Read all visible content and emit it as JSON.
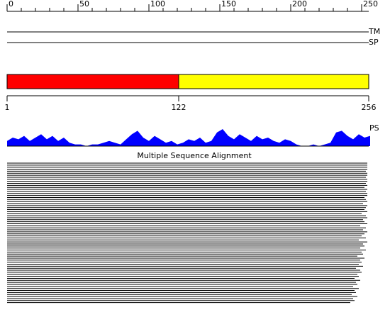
{
  "ruler": {
    "xlim": [
      0,
      255
    ],
    "ticks": [
      0,
      50,
      100,
      150,
      200,
      250
    ],
    "minor_ticks": [
      10,
      20,
      30,
      40,
      60,
      70,
      80,
      90,
      110,
      120,
      130,
      140,
      160,
      170,
      180,
      190,
      210,
      220,
      230,
      240
    ]
  },
  "tracks": [
    {
      "label": "TM"
    },
    {
      "label": "SP"
    }
  ],
  "domains": {
    "boundaries": [
      1,
      122,
      256
    ],
    "segments": [
      {
        "start": 1,
        "end": 122,
        "color": "#ff0000"
      },
      {
        "start": 122,
        "end": 256,
        "color": "#ffff00"
      }
    ]
  },
  "profile": {
    "label": "PS",
    "color": "#0000ff",
    "ylim": [
      0,
      10
    ],
    "x": [
      0,
      4,
      8,
      12,
      16,
      20,
      24,
      28,
      32,
      36,
      40,
      44,
      48,
      52,
      56,
      60,
      64,
      68,
      72,
      76,
      80,
      84,
      88,
      92,
      96,
      100,
      104,
      108,
      112,
      116,
      120,
      124,
      128,
      132,
      136,
      140,
      144,
      148,
      152,
      156,
      160,
      164,
      168,
      172,
      176,
      180,
      184,
      188,
      192,
      196,
      200,
      204,
      208,
      212,
      216,
      220,
      224,
      228,
      232,
      236,
      240,
      244,
      248,
      252,
      256
    ],
    "values": [
      3,
      5,
      4,
      6,
      3,
      5,
      7,
      4,
      6,
      3,
      5,
      2,
      1,
      1,
      0,
      1,
      1,
      2,
      3,
      2,
      1,
      4,
      7,
      9,
      5,
      3,
      6,
      4,
      2,
      3,
      1,
      2,
      4,
      3,
      5,
      2,
      3,
      8,
      10,
      6,
      4,
      7,
      5,
      3,
      6,
      4,
      5,
      3,
      2,
      4,
      3,
      1,
      0,
      0,
      1,
      0,
      1,
      2,
      8,
      9,
      6,
      4,
      7,
      5,
      6
    ]
  },
  "msa": {
    "title": "Multiple Sequence Alignment",
    "starts": [
      1,
      1,
      1,
      1,
      1,
      1,
      1,
      1,
      1,
      1,
      1,
      1,
      1,
      1,
      1,
      1,
      1,
      1,
      1,
      1,
      1,
      1,
      1,
      1,
      1,
      1,
      1,
      1,
      1,
      1,
      1,
      1,
      1,
      1,
      1,
      1,
      1,
      1,
      1,
      1,
      1,
      1,
      1,
      1,
      1,
      1,
      1,
      1,
      1,
      1,
      1,
      1,
      1,
      1,
      1,
      1,
      1,
      1,
      1,
      1,
      1,
      1,
      1,
      1,
      1,
      1,
      1,
      1,
      1,
      1
    ],
    "ends": [
      255,
      255,
      255,
      255,
      254,
      255,
      255,
      254,
      255,
      255,
      254,
      255,
      253,
      255,
      254,
      255,
      255,
      253,
      254,
      255,
      252,
      255,
      254,
      253,
      255,
      251,
      254,
      255,
      252,
      253,
      255,
      250,
      254,
      252,
      255,
      253,
      251,
      254,
      249,
      255,
      252,
      253,
      250,
      254,
      251,
      252,
      248,
      253,
      250,
      251,
      249,
      252,
      247,
      250,
      251,
      248,
      249,
      246,
      250,
      247,
      248,
      245,
      249,
      246,
      247,
      244,
      248,
      245,
      246,
      243
    ]
  }
}
